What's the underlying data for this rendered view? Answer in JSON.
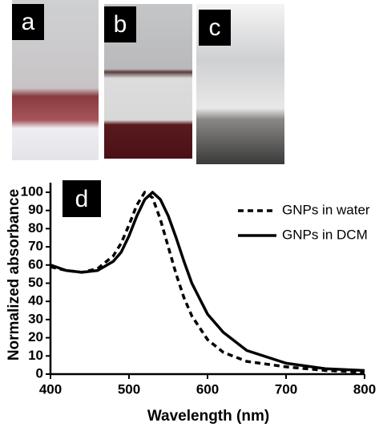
{
  "panels": [
    "a",
    "b",
    "c"
  ],
  "chart_data": {
    "type": "line",
    "panel_label": "d",
    "x_label": "Wavelength (nm)",
    "y_label": "Normalized absorbance",
    "x": [
      400,
      420,
      440,
      460,
      480,
      490,
      500,
      510,
      520,
      530,
      540,
      550,
      560,
      570,
      580,
      600,
      620,
      650,
      700,
      750,
      800
    ],
    "series": [
      {
        "name": "GNPs in water",
        "color": "#000000",
        "linestyle": "dashed",
        "values": [
          59,
          57,
          56,
          58,
          65,
          72,
          82,
          93,
          100,
          97,
          85,
          70,
          55,
          42,
          32,
          19,
          12,
          7,
          4,
          2,
          1
        ]
      },
      {
        "name": "GNPs in DCM",
        "color": "#000000",
        "linestyle": "solid",
        "values": [
          60,
          57,
          56,
          57,
          62,
          67,
          76,
          87,
          96,
          100,
          96,
          87,
          75,
          62,
          50,
          33,
          23,
          13,
          6,
          3,
          2
        ]
      }
    ],
    "xlim": [
      400,
      800
    ],
    "xticks": [
      400,
      500,
      600,
      700,
      800
    ],
    "ylim": [
      0,
      100
    ],
    "yticks": [
      0,
      10,
      20,
      30,
      40,
      50,
      60,
      70,
      80,
      90,
      100
    ],
    "legend": "upper right"
  }
}
